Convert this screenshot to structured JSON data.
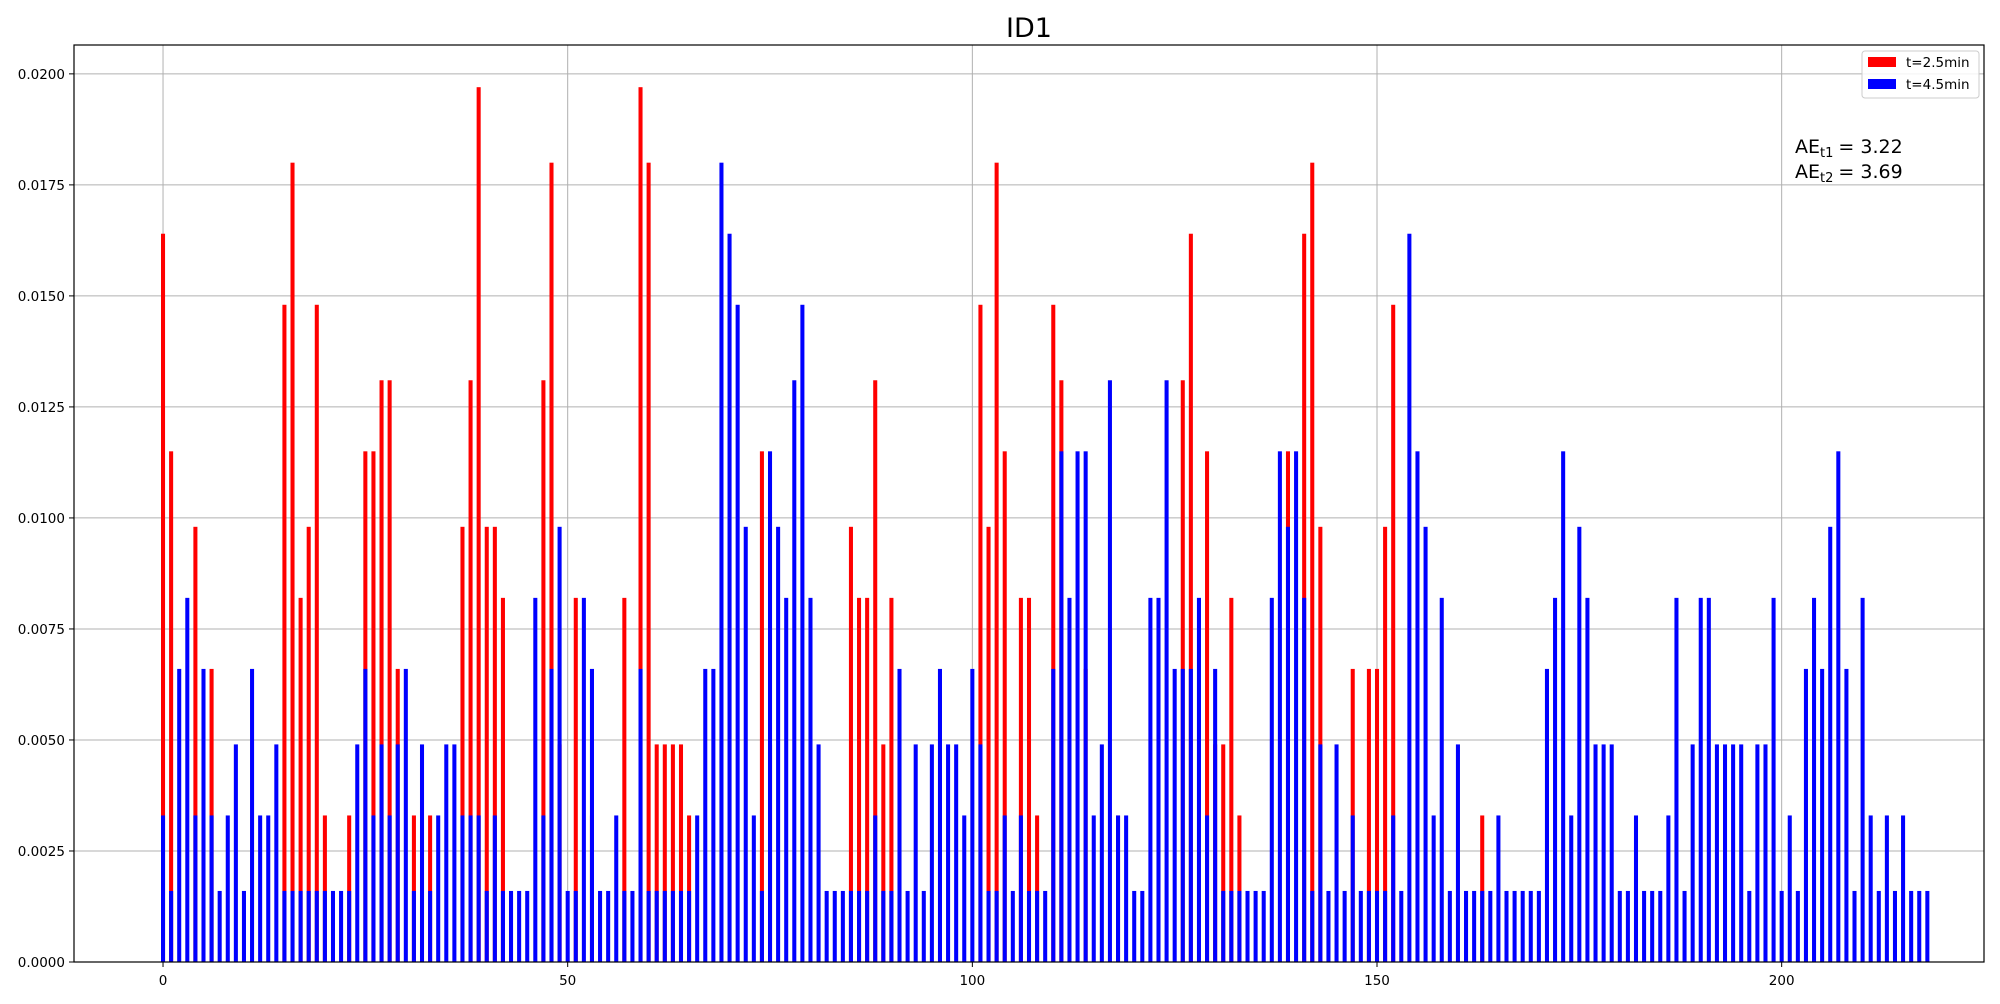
{
  "chart_data": {
    "type": "bar",
    "title": "ID1",
    "xlabel": "",
    "ylabel": "",
    "xlim": [
      -11,
      225
    ],
    "ylim": [
      0,
      0.02065
    ],
    "xticks": [
      0,
      50,
      100,
      150,
      200
    ],
    "xtick_labels": [
      "0",
      "50",
      "100",
      "150",
      "200"
    ],
    "yticks": [
      0,
      0.0025,
      0.005,
      0.0075,
      0.01,
      0.0125,
      0.015,
      0.0175,
      0.02
    ],
    "ytick_labels": [
      "0.0000",
      "0.0025",
      "0.0050",
      "0.0075",
      "0.0100",
      "0.0125",
      "0.0150",
      "0.0175",
      "0.0200"
    ],
    "grid": true,
    "legend_position": "top-right",
    "bar_width": 0.5,
    "x_start": 0,
    "series": [
      {
        "name": "t=2.5min",
        "color": "#ff0000",
        "values": [
          0.0164,
          0.0115,
          0,
          0,
          0.0098,
          0,
          0.0066,
          0,
          0,
          0,
          0,
          0,
          0,
          0,
          0,
          0.0148,
          0.018,
          0.0082,
          0.0098,
          0.0148,
          0.0033,
          0,
          0,
          0.0033,
          0,
          0.0115,
          0.0115,
          0.0131,
          0.0131,
          0.0066,
          0,
          0.0033,
          0,
          0.0033,
          0,
          0,
          0,
          0.0098,
          0.0131,
          0.0197,
          0.0098,
          0.0098,
          0.0082,
          0,
          0,
          0,
          0,
          0.0131,
          0.018,
          0.0049,
          0,
          0.0082,
          0,
          0.0033,
          0,
          0,
          0,
          0.0082,
          0,
          0.0197,
          0.018,
          0.0049,
          0.0049,
          0.0049,
          0.0049,
          0.0033,
          0,
          0,
          0,
          0,
          0,
          0,
          0,
          0,
          0.0115,
          0.0049,
          0,
          0,
          0,
          0,
          0,
          0,
          0,
          0,
          0,
          0.0098,
          0.0082,
          0.0082,
          0.0131,
          0.0049,
          0.0082,
          0,
          0,
          0,
          0,
          0,
          0,
          0,
          0,
          0,
          0,
          0.0148,
          0.0098,
          0.018,
          0.0115,
          0,
          0.0082,
          0.0082,
          0.0033,
          0,
          0.0148,
          0.0131,
          0,
          0,
          0.0066,
          0,
          0,
          0,
          0.0033,
          0,
          0,
          0,
          0,
          0,
          0,
          0,
          0.0131,
          0.0164,
          0,
          0.0115,
          0.0049,
          0.0049,
          0.0082,
          0.0033,
          0,
          0,
          0,
          0,
          0,
          0.0115,
          0,
          0.0164,
          0.018,
          0.0098,
          0,
          0,
          0,
          0.0066,
          0,
          0.0066,
          0.0066,
          0.0098,
          0.0148,
          0,
          0,
          0,
          0,
          0,
          0,
          0,
          0,
          0,
          0,
          0.0033,
          0,
          0,
          0,
          0,
          0,
          0,
          0,
          0,
          0,
          0,
          0,
          0,
          0,
          0,
          0,
          0,
          0,
          0,
          0,
          0,
          0,
          0,
          0,
          0,
          0,
          0,
          0,
          0,
          0,
          0,
          0,
          0,
          0,
          0,
          0,
          0,
          0,
          0,
          0,
          0,
          0,
          0,
          0,
          0,
          0,
          0,
          0,
          0,
          0,
          0,
          0,
          0,
          0,
          0,
          0,
          0,
          0,
          0
        ]
      },
      {
        "name": "t=4.5min",
        "color": "#0000ff",
        "values": [
          0.0033,
          0.0016,
          0.0066,
          0.0082,
          0.0033,
          0.0066,
          0.0033,
          0.0016,
          0.0033,
          0.0049,
          0.0016,
          0.0066,
          0.0033,
          0.0033,
          0.0049,
          0.0016,
          0.0016,
          0.0016,
          0.0016,
          0.0016,
          0.0016,
          0.0016,
          0.0016,
          0.0016,
          0.0049,
          0.0066,
          0.0033,
          0.0049,
          0.0033,
          0.0049,
          0.0066,
          0.0016,
          0.0049,
          0.0016,
          0.0033,
          0.0049,
          0.0049,
          0.0033,
          0.0033,
          0.0033,
          0.0016,
          0.0033,
          0.0016,
          0.0016,
          0.0016,
          0.0016,
          0.0082,
          0.0033,
          0.0066,
          0.0098,
          0.0016,
          0.0016,
          0.0082,
          0.0066,
          0.0016,
          0.0016,
          0.0033,
          0.0016,
          0.0016,
          0.0066,
          0.0016,
          0.0016,
          0.0016,
          0.0016,
          0.0016,
          0.0016,
          0.0033,
          0.0066,
          0.0066,
          0.018,
          0.0164,
          0.0148,
          0.0098,
          0.0033,
          0.0016,
          0.0115,
          0.0098,
          0.0082,
          0.0131,
          0.0148,
          0.0082,
          0.0049,
          0.0016,
          0.0016,
          0.0016,
          0.0016,
          0.0016,
          0.0016,
          0.0033,
          0.0016,
          0.0016,
          0.0066,
          0.0016,
          0.0049,
          0.0016,
          0.0049,
          0.0066,
          0.0049,
          0.0049,
          0.0033,
          0.0066,
          0.0049,
          0.0016,
          0.0016,
          0.0033,
          0.0016,
          0.0033,
          0.0016,
          0.0016,
          0.0016,
          0.0066,
          0.0115,
          0.0082,
          0.0115,
          0.0115,
          0.0033,
          0.0049,
          0.0131,
          0.0033,
          0.0033,
          0.0016,
          0.0016,
          0.0082,
          0.0082,
          0.0131,
          0.0066,
          0.0066,
          0.0066,
          0.0082,
          0.0033,
          0.0066,
          0.0016,
          0.0016,
          0.0016,
          0.0016,
          0.0016,
          0.0016,
          0.0082,
          0.0115,
          0.0098,
          0.0115,
          0.0082,
          0.0016,
          0.0049,
          0.0016,
          0.0049,
          0.0016,
          0.0033,
          0.0016,
          0.0016,
          0.0016,
          0.0016,
          0.0033,
          0.0016,
          0.0164,
          0.0115,
          0.0098,
          0.0033,
          0.0082,
          0.0016,
          0.0049,
          0.0016,
          0.0016,
          0.0016,
          0.0016,
          0.0033,
          0.0016,
          0.0016,
          0.0016,
          0.0016,
          0.0016,
          0.0066,
          0.0082,
          0.0115,
          0.0033,
          0.0098,
          0.0082,
          0.0049,
          0.0049,
          0.0049,
          0.0016,
          0.0016,
          0.0033,
          0.0016,
          0.0016,
          0.0016,
          0.0033,
          0.0082,
          0.0016,
          0.0049,
          0.0082,
          0.0082,
          0.0049,
          0.0049,
          0.0049,
          0.0049,
          0.0016,
          0.0049,
          0.0049,
          0.0082,
          0.0016,
          0.0033,
          0.0016,
          0.0066,
          0.0082,
          0.0066,
          0.0098,
          0.0115,
          0.0066,
          0.0016,
          0.0082,
          0.0033,
          0.0016,
          0.0033,
          0.0016,
          0.0033,
          0.0016,
          0.0016,
          0.0016
        ]
      }
    ],
    "annotations": [
      {
        "base": "AE",
        "subscript": "t1",
        "text": "= 3.22"
      },
      {
        "base": "AE",
        "subscript": "t2",
        "text": "= 3.69"
      }
    ]
  }
}
